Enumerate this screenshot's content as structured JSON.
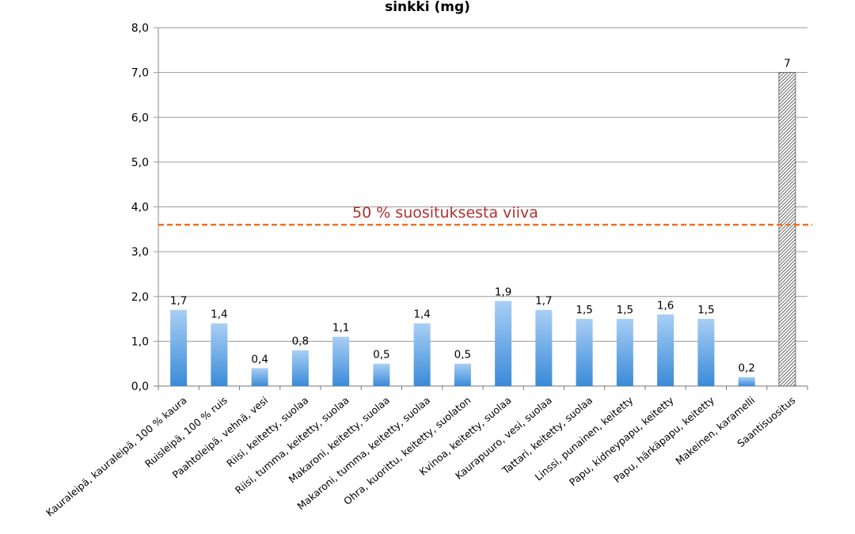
{
  "chart_data": {
    "type": "bar",
    "title": "sinkki (mg)",
    "xlabel": "",
    "ylabel": "",
    "ylim": [
      0,
      8
    ],
    "y_ticks": [
      "0,0",
      "1,0",
      "2,0",
      "3,0",
      "4,0",
      "5,0",
      "6,0",
      "7,0",
      "8,0"
    ],
    "grid": true,
    "categories": [
      "Kauraleipä, kauraleipä, 100 % kaura",
      "Ruisleipä, 100 % ruis",
      "Paahtoleipä, vehnä, vesi",
      "Riisi, keitetty, suolaa",
      "Riisi, tumma, keitetty, suolaa",
      "Makaroni, keitetty, suolaa",
      "Makaroni, tumma, keitetty, suolaa",
      "Ohra, kuorittu, keitetty, suolaton",
      "Kvinoa, keitetty, suolaa",
      "Kaurapuuro, vesi, suolaa",
      "Tattari, keitetty, suolaa",
      "Linssi, punainen, keitetty",
      "Papu, kidneypapu, keitetty",
      "Papu, härkäpapu, keitetty",
      "Makeinen, karamelli",
      "Saantisuositus"
    ],
    "values": [
      1.7,
      1.4,
      0.4,
      0.8,
      1.1,
      0.5,
      1.4,
      0.5,
      1.9,
      1.7,
      1.5,
      1.5,
      1.6,
      1.5,
      0.2,
      7
    ],
    "data_labels": [
      "1,7",
      "1,4",
      "0,4",
      "0,8",
      "1,1",
      "0,5",
      "1,4",
      "0,5",
      "1,9",
      "1,7",
      "1,5",
      "1,5",
      "1,6",
      "1,5",
      "0,2",
      "7"
    ],
    "highlight_category": "Saantisuositus",
    "reference_line": {
      "value": 3.6,
      "label": "50 % suosituksesta viiva"
    },
    "colors": {
      "bar_top": "#a9cff5",
      "bar_bottom": "#3a8ad8",
      "recommendation_hatch": "#333333",
      "reference_line": "#f07020",
      "reference_label": "#b03030",
      "grid": "#9a9a9a"
    }
  }
}
